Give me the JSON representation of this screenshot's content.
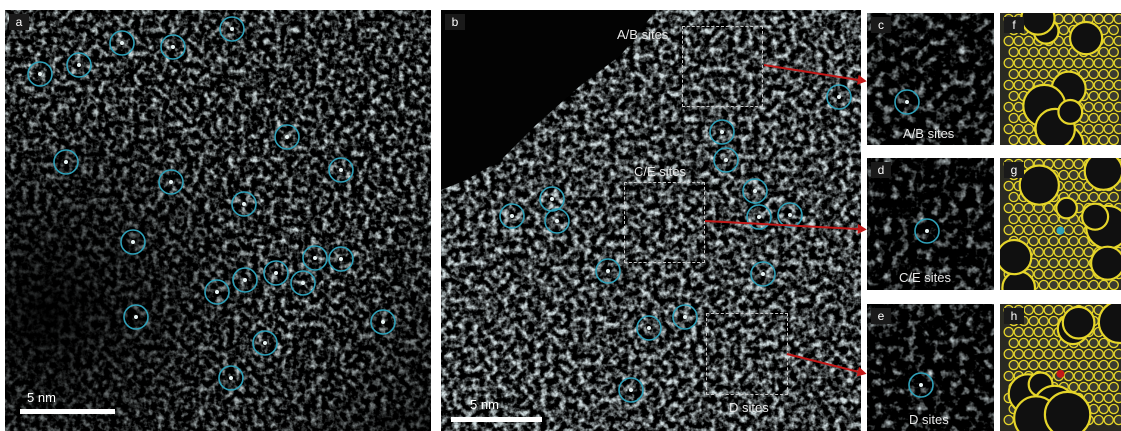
{
  "figure": {
    "panels": {
      "a": {
        "label": "a",
        "scale_label": "5 nm"
      },
      "b": {
        "label": "b",
        "scale_label": "5 nm",
        "regions": {
          "ab": "A/B sites",
          "ce": "C/E sites",
          "d": "D sites"
        }
      },
      "c": {
        "label": "c",
        "caption": "A/B sites"
      },
      "d": {
        "label": "d",
        "caption": "C/E sites"
      },
      "e": {
        "label": "e",
        "caption": "D sites"
      },
      "f": {
        "label": "f"
      },
      "g": {
        "label": "g"
      },
      "h": {
        "label": "h"
      }
    },
    "colors": {
      "background": "#000000",
      "texture": "#9fb4b6",
      "circle": "#2fa0b8",
      "network": "#e5d52a",
      "arrow": "#c21818",
      "box": "#c9c9c9"
    }
  }
}
